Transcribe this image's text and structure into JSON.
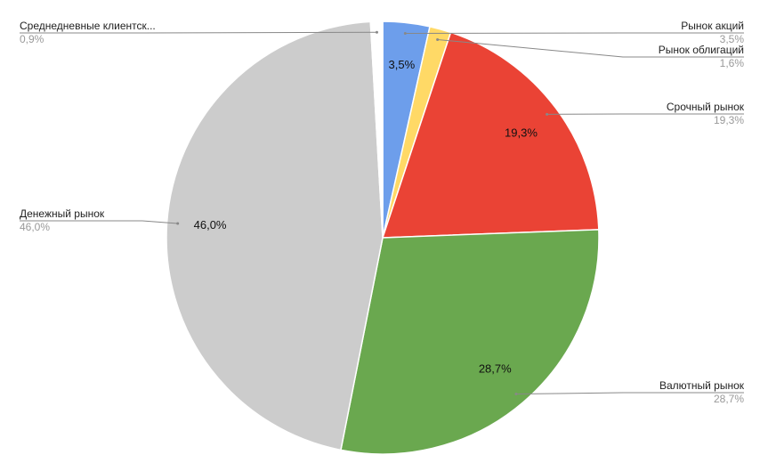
{
  "chart_data": {
    "type": "pie",
    "categories": [
      "Рынок акций",
      "Рынок облигаций",
      "Срочный рынок",
      "Валютный рынок",
      "Денежный рынок",
      "Среднедневные клиентск..."
    ],
    "values": [
      3.5,
      1.6,
      19.3,
      28.7,
      46.0,
      0.9
    ],
    "value_labels": [
      "3,5%",
      "1,6%",
      "19,3%",
      "28,7%",
      "46,0%",
      "0,9%"
    ],
    "colors": [
      "#6d9eeb",
      "#ffd966",
      "#ea4335",
      "#6aa84f",
      "#cccccc",
      "#ffffff"
    ]
  }
}
